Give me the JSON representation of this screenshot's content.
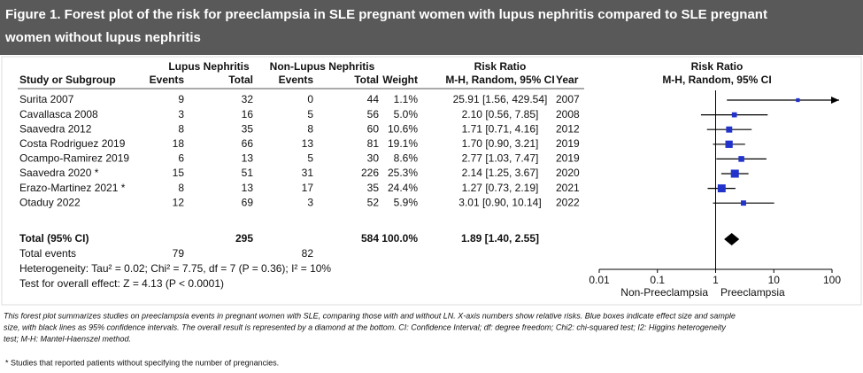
{
  "header": {
    "title_lines": [
      "Figure 1. Forest plot of the risk for preeclampsia in SLE pregnant women with lupus nephritis compared to SLE pregnant",
      "women without lupus nephritis"
    ]
  },
  "table": {
    "group_headers": {
      "lupus": "Lupus Nephritis",
      "non_lupus": "Non-Lupus Nephritis",
      "risk_ratio": "Risk Ratio"
    },
    "columns": {
      "study": "Study or Subgroup",
      "events1": "Events",
      "total1": "Total",
      "events2": "Events",
      "total2": "Total",
      "weight": "Weight",
      "ci": "M-H, Random, 95% CI",
      "year": "Year"
    },
    "rows": [
      [
        "Surita 2007",
        9,
        32,
        0,
        44,
        "1.1%",
        "25.91 [1.56, 429.54]",
        2007
      ],
      [
        "Cavallasca 2008",
        3,
        16,
        5,
        56,
        "5.0%",
        "2.10 [0.56, 7.85]",
        2008
      ],
      [
        "Saavedra 2012",
        8,
        35,
        8,
        60,
        "10.6%",
        "1.71 [0.71, 4.16]",
        2012
      ],
      [
        "Costa Rodriguez 2019",
        18,
        66,
        13,
        81,
        "19.1%",
        "1.70 [0.90, 3.21]",
        2019
      ],
      [
        "Ocampo-Ramirez 2019",
        6,
        13,
        5,
        30,
        "8.6%",
        "2.77 [1.03, 7.47]",
        2019
      ],
      [
        "Saavedra 2020 *",
        15,
        51,
        31,
        226,
        "25.3%",
        "2.14 [1.25, 3.67]",
        2020
      ],
      [
        "Erazo-Martinez 2021 *",
        8,
        13,
        17,
        35,
        "24.4%",
        "1.27 [0.73, 2.19]",
        2021
      ],
      [
        "Otaduy 2022",
        12,
        69,
        3,
        52,
        "5.9%",
        "3.01 [0.90, 10.14]",
        2022
      ]
    ],
    "total": {
      "label": "Total (95% CI)",
      "total1": 295,
      "total2": 584,
      "weight": "100.0%",
      "ci": "1.89 [1.40, 2.55]"
    },
    "total_events": {
      "label": "Total events",
      "events1": 79,
      "events2": 82
    },
    "heterogeneity": "Heterogeneity: Tau² = 0.02; Chi² = 7.75, df = 7 (P = 0.36); I² = 10%",
    "overall_test": "Test for overall effect: Z = 4.13 (P < 0.0001)"
  },
  "chart_data": {
    "type": "forest",
    "title": "Risk Ratio",
    "subtitle": "M-H, Random, 95% CI",
    "log_scale": true,
    "xlim": [
      0.01,
      100
    ],
    "xticks": [
      0.01,
      0.1,
      1,
      10,
      100
    ],
    "color": "#2233cc",
    "summary_color": "#000000",
    "estimates": [
      25.91,
      2.1,
      1.71,
      1.7,
      2.77,
      2.14,
      1.27,
      3.01
    ],
    "lower": [
      1.56,
      0.56,
      0.71,
      0.9,
      1.03,
      1.25,
      0.73,
      0.9
    ],
    "upper": [
      429.54,
      7.85,
      4.16,
      3.21,
      7.47,
      3.67,
      2.19,
      10.14
    ],
    "weights": [
      1.1,
      5.0,
      10.6,
      19.1,
      8.6,
      25.3,
      24.4,
      5.9
    ],
    "overall": {
      "estimate": 1.89,
      "lower": 1.4,
      "upper": 2.55
    },
    "xlabel_left": "Non-Preeclampsia",
    "xlabel_right": "Preeclampsia"
  },
  "caption_lines": [
    "This forest plot summarizes studies on preeclampsia events in pregnant women with SLE, comparing those with and without LN. X-axis numbers show relative risks. Blue boxes indicate effect size and sample",
    "size, with black lines as 95% confidence intervals. The overall result is represented by a diamond at the bottom. CI: Confidence Interval; df: degree freedom; Chi2: chi-squared test; I2: Higgins heterogeneity",
    "test; M-H: Mantel-Haenszel method."
  ],
  "footnote": "*  Studies that reported patients without specifying the number of pregnancies."
}
